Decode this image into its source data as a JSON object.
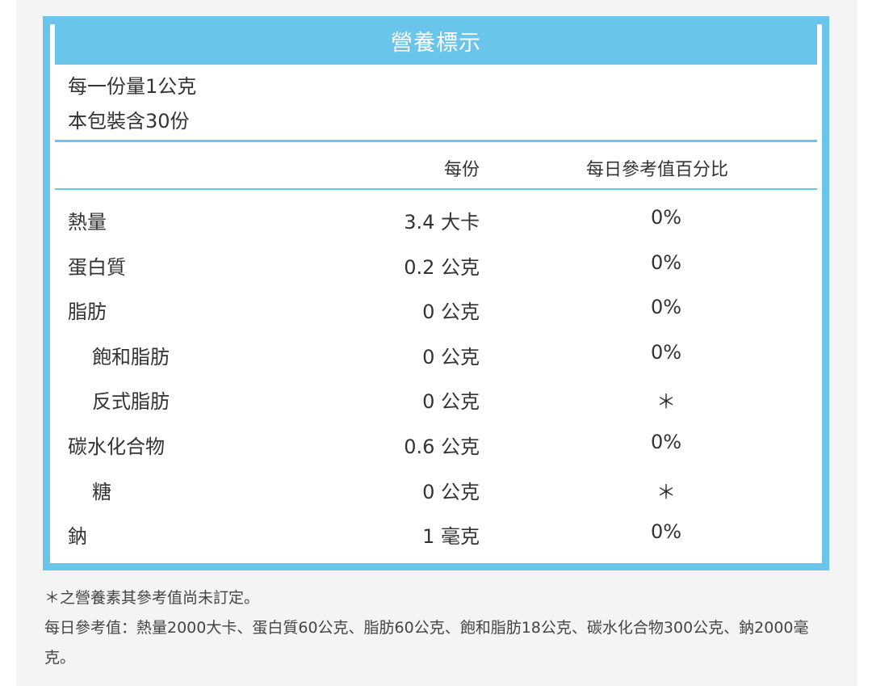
{
  "title": "營養標示",
  "serving": {
    "per_serving": "每一份量1公克",
    "servings_per_package": "本包裝含30份"
  },
  "columns": {
    "per_serving": "每份",
    "daily_value_percent": "每日參考值百分比"
  },
  "nutrients": [
    {
      "name": "熱量",
      "amount": "3.4 大卡",
      "percent": "0%"
    },
    {
      "name": "蛋白質",
      "amount": "0.2 公克",
      "percent": "0%"
    },
    {
      "name": "脂肪",
      "amount": "0 公克",
      "percent": "0%"
    },
    {
      "name": "飽和脂肪",
      "amount": "0 公克",
      "percent": "0%"
    },
    {
      "name": "反式脂肪",
      "amount": "0 公克",
      "percent": "＊"
    },
    {
      "name": "碳水化合物",
      "amount": "0.6 公克",
      "percent": "0%"
    },
    {
      "name": "糖",
      "amount": "0 公克",
      "percent": "＊"
    },
    {
      "name": "鈉",
      "amount": "1 毫克",
      "percent": "0%"
    }
  ],
  "footnotes": {
    "asterisk_note": "＊之營養素其參考值尚未訂定。",
    "reference_values": "每日參考值：熱量2000大卡、蛋白質60公克、脂肪60公克、飽和脂肪18公克、碳水化合物300公克、鈉2000毫克。"
  },
  "colors": {
    "accent": "#6ac5ea",
    "text": "#333333",
    "background": "#f4f4f4"
  }
}
